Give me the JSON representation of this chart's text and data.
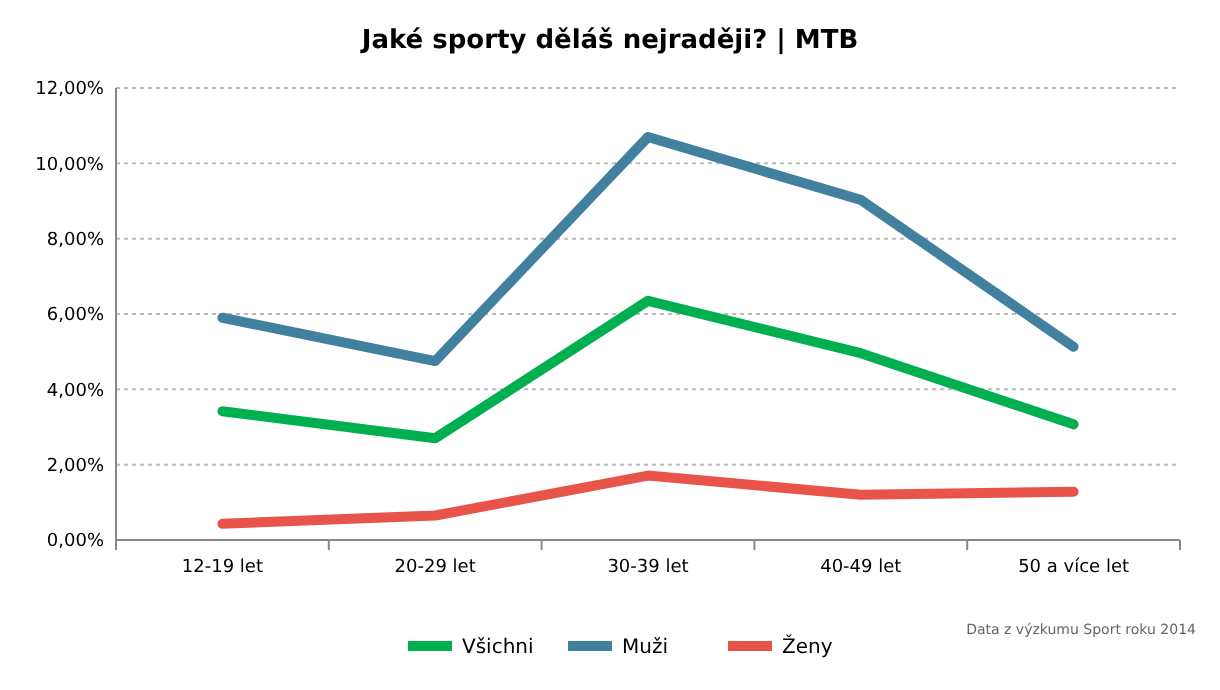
{
  "chart_data": {
    "type": "line",
    "title": "Jaké sporty děláš nejraději? | MTB",
    "categories": [
      "12-19 let",
      "20-29 let",
      "30-39 let",
      "40-49 let",
      "50 a více let"
    ],
    "series": [
      {
        "name": "Všichni",
        "color": "#00b050",
        "values": [
          3.42,
          2.7,
          6.35,
          4.96,
          3.07
        ]
      },
      {
        "name": "Muži",
        "color": "#41809e",
        "values": [
          5.9,
          4.75,
          10.7,
          9.03,
          5.13
        ]
      },
      {
        "name": "Ženy",
        "color": "#e8534a",
        "values": [
          0.43,
          0.65,
          1.71,
          1.2,
          1.28
        ]
      }
    ],
    "ylim": [
      0,
      12
    ],
    "yticks": [
      {
        "value": 0,
        "label": "0,00%"
      },
      {
        "value": 2,
        "label": "2,00%"
      },
      {
        "value": 4,
        "label": "4,00%"
      },
      {
        "value": 6,
        "label": "6,00%"
      },
      {
        "value": 8,
        "label": "8,00%"
      },
      {
        "value": 10,
        "label": "10,00%"
      },
      {
        "value": 12,
        "label": "12,00%"
      }
    ],
    "grid": "y",
    "legend": "bottom",
    "marker": "none",
    "line_style": "solid",
    "annotations": [
      "Data z výzkumu Sport roku 2014"
    ]
  }
}
